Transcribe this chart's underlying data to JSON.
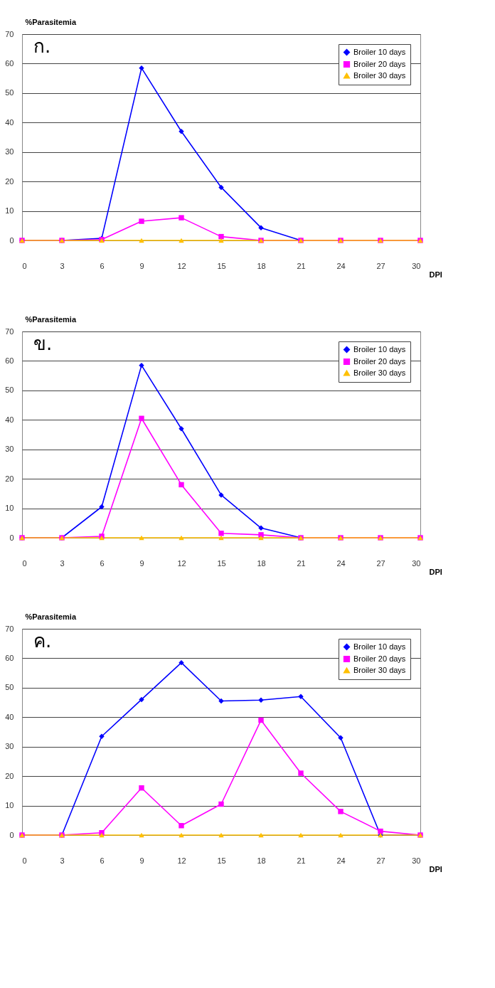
{
  "chart_data": [
    {
      "type": "line",
      "title": "ก.",
      "xlabel": "DPI",
      "ylabel": "%Parasitemia",
      "x": [
        0,
        3,
        6,
        9,
        12,
        15,
        18,
        21,
        24,
        27,
        30
      ],
      "xlim": [
        0,
        30
      ],
      "xticks": [
        0,
        3,
        6,
        9,
        12,
        15,
        18,
        21,
        24,
        27,
        30
      ],
      "ylim": [
        0,
        70
      ],
      "yticks": [
        0,
        10,
        20,
        30,
        40,
        50,
        60,
        70
      ],
      "grid": "y",
      "legend": "top right",
      "series": [
        {
          "name": "Broiler 10 days",
          "color": "#0000ff",
          "marker": "diamond",
          "values": [
            0,
            0,
            0.7,
            58.5,
            37,
            18,
            4.3,
            0,
            null,
            null,
            null
          ]
        },
        {
          "name": "Broiler 20 days",
          "color": "#ff00ff",
          "marker": "square",
          "values": [
            0,
            0,
            0.3,
            6.5,
            7.7,
            1.3,
            0,
            0,
            0,
            0,
            0
          ]
        },
        {
          "name": "Broiler 30 days",
          "color": "#ffc000",
          "marker": "triangle",
          "values": [
            0,
            0,
            0,
            0,
            0,
            0,
            0,
            0,
            0,
            0,
            0
          ]
        }
      ]
    },
    {
      "type": "line",
      "title": "ข.",
      "xlabel": "DPI",
      "ylabel": "%Parasitemia",
      "x": [
        0,
        3,
        6,
        9,
        12,
        15,
        18,
        21,
        24,
        27,
        30
      ],
      "xlim": [
        0,
        30
      ],
      "xticks": [
        0,
        3,
        6,
        9,
        12,
        15,
        18,
        21,
        24,
        27,
        30
      ],
      "ylim": [
        0,
        70
      ],
      "yticks": [
        0,
        10,
        20,
        30,
        40,
        50,
        60,
        70
      ],
      "grid": "y",
      "legend": "top right",
      "series": [
        {
          "name": "Broiler 10 days",
          "color": "#0000ff",
          "marker": "diamond",
          "values": [
            0,
            0,
            10.5,
            58.5,
            37,
            14.5,
            3.3,
            0,
            null,
            null,
            null
          ]
        },
        {
          "name": "Broiler 20 days",
          "color": "#ff00ff",
          "marker": "square",
          "values": [
            0,
            0,
            0.5,
            40.5,
            18,
            1.5,
            1,
            0,
            0,
            0,
            0
          ]
        },
        {
          "name": "Broiler 30 days",
          "color": "#ffc000",
          "marker": "triangle",
          "values": [
            0,
            0,
            0,
            0,
            0,
            0,
            0,
            0,
            0,
            0,
            0
          ]
        }
      ]
    },
    {
      "type": "line",
      "title": "ค.",
      "xlabel": "DPI",
      "ylabel": "%Parasitemia",
      "x": [
        0,
        3,
        6,
        9,
        12,
        15,
        18,
        21,
        24,
        27,
        30
      ],
      "xlim": [
        0,
        30
      ],
      "xticks": [
        0,
        3,
        6,
        9,
        12,
        15,
        18,
        21,
        24,
        27,
        30
      ],
      "ylim": [
        0,
        70
      ],
      "yticks": [
        0,
        10,
        20,
        30,
        40,
        50,
        60,
        70
      ],
      "grid": "y",
      "legend": "top right",
      "series": [
        {
          "name": "Broiler 10 days",
          "color": "#0000ff",
          "marker": "diamond",
          "values": [
            0,
            0,
            33.5,
            46,
            58.5,
            45.5,
            45.8,
            47,
            33,
            0,
            0
          ]
        },
        {
          "name": "Broiler 20 days",
          "color": "#ff00ff",
          "marker": "square",
          "values": [
            0,
            0,
            0.8,
            16,
            3.2,
            10.5,
            39,
            21,
            8,
            1.3,
            0
          ]
        },
        {
          "name": "Broiler 30 days",
          "color": "#ffc000",
          "marker": "triangle",
          "values": [
            0,
            0,
            0,
            0,
            0,
            0,
            0,
            0,
            0,
            0,
            0
          ]
        }
      ]
    }
  ]
}
